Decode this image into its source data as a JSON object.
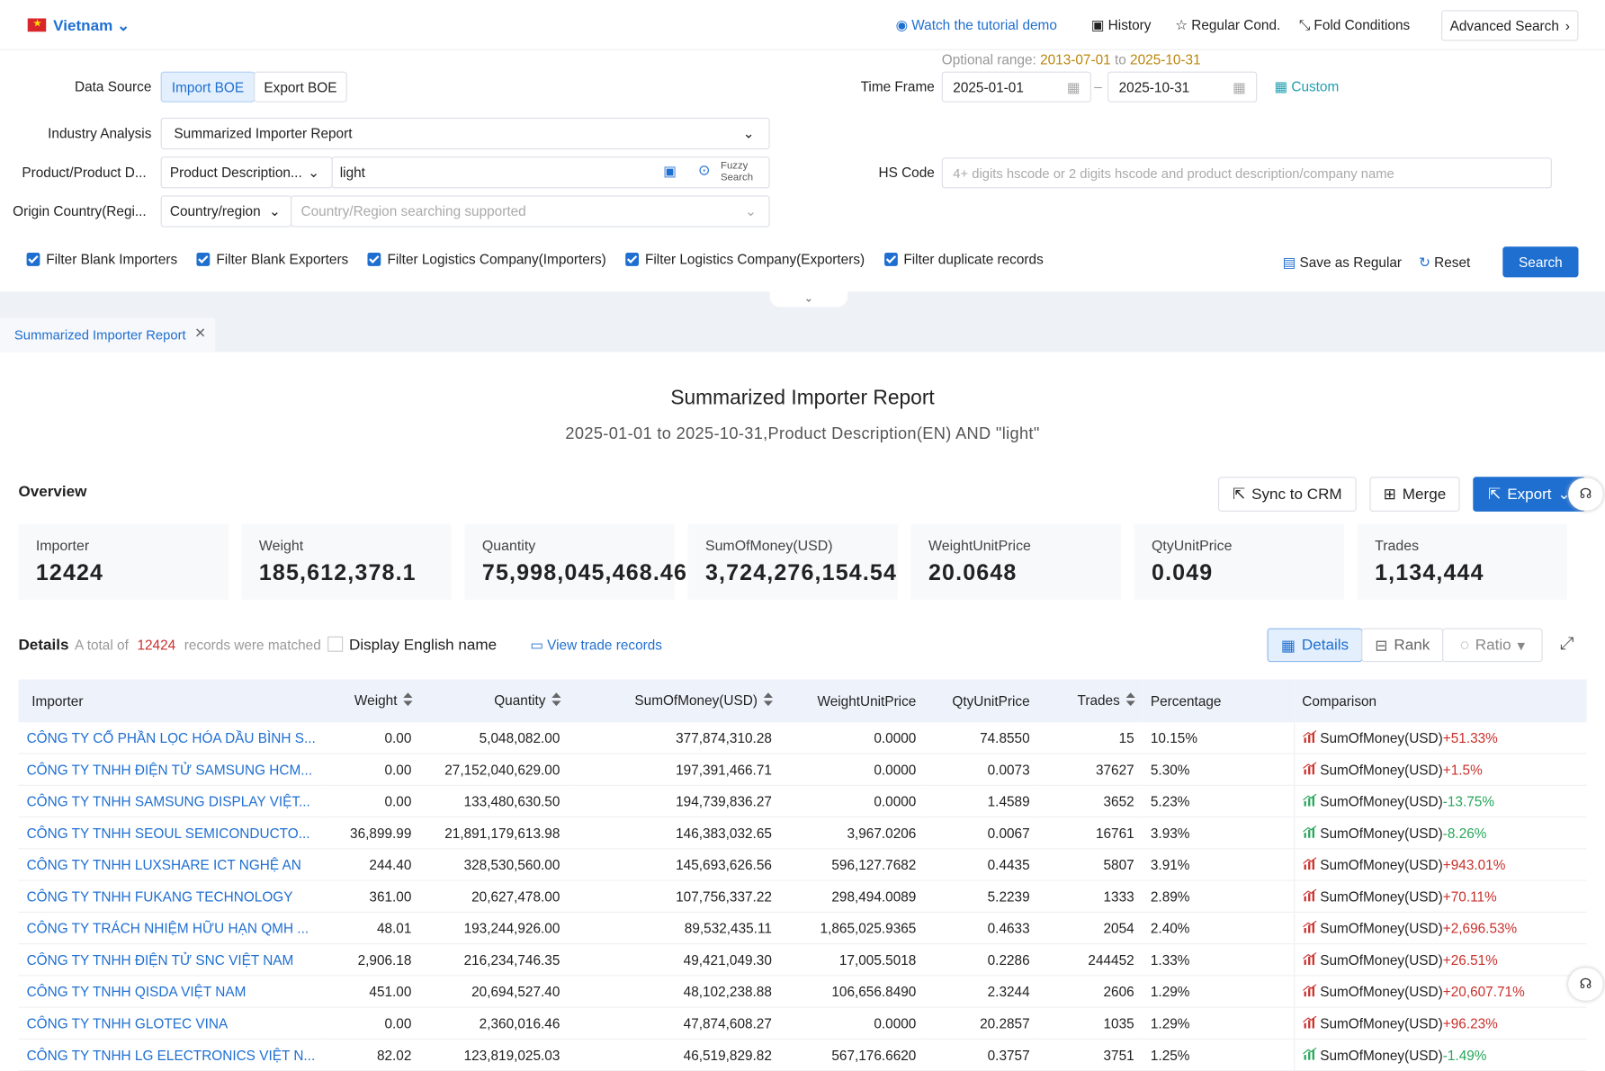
{
  "header": {
    "country": "Vietnam",
    "tutorial": "Watch the tutorial demo",
    "history": "History",
    "regular": "Regular Cond.",
    "fold": "Fold Conditions",
    "advanced": "Advanced Search"
  },
  "form": {
    "optional_range": {
      "label": "Optional range:",
      "from": "2013-07-01",
      "to_word": "to",
      "to": "2025-10-31"
    },
    "data_source": {
      "label": "Data Source",
      "options": [
        "Import BOE",
        "Export BOE"
      ]
    },
    "time_frame": {
      "label": "Time Frame",
      "start": "2025-01-01",
      "end": "2025-10-31",
      "custom": "Custom"
    },
    "industry": {
      "label": "Industry Analysis",
      "value": "Summarized Importer Report"
    },
    "product": {
      "label": "Product/Product D...",
      "type": "Product Description...",
      "value": "light",
      "fuzzy": [
        "Fuzzy",
        "Search"
      ]
    },
    "hs_code": {
      "label": "HS Code",
      "placeholder": "4+ digits hscode or 2 digits hscode and product description/company name"
    },
    "origin": {
      "label": "Origin Country(Regi...",
      "type": "Country/region",
      "placeholder": "Country/Region searching supported"
    },
    "filters": [
      "Filter Blank Importers",
      "Filter Blank Exporters",
      "Filter Logistics Company(Importers)",
      "Filter Logistics Company(Exporters)",
      "Filter duplicate records"
    ],
    "actions": {
      "save": "Save as Regular",
      "reset": "Reset",
      "search": "Search"
    }
  },
  "tab": "Summarized Importer Report",
  "report": {
    "title": "Summarized Importer Report",
    "subtitle": "2025-01-01 to 2025-10-31,Product Description(EN) AND \"light\""
  },
  "overview": {
    "label": "Overview",
    "buttons": [
      "Sync to CRM",
      "Merge",
      "Export"
    ],
    "stats": [
      {
        "label": "Importer",
        "value": "12424"
      },
      {
        "label": "Weight",
        "value": "185,612,378.1"
      },
      {
        "label": "Quantity",
        "value": "75,998,045,468.46"
      },
      {
        "label": "SumOfMoney(USD)",
        "value": "3,724,276,154.54"
      },
      {
        "label": "WeightUnitPrice",
        "value": "20.0648"
      },
      {
        "label": "QtyUnitPrice",
        "value": "0.049"
      },
      {
        "label": "Trades",
        "value": "1,134,444"
      }
    ]
  },
  "details": {
    "label": "Details",
    "total_prefix": "A total of",
    "total": "12424",
    "total_suffix": "records were matched",
    "english": "Display English name",
    "view": "View trade records",
    "views": [
      "Details",
      "Rank",
      "Ratio"
    ]
  },
  "table": {
    "columns": [
      {
        "label": "Importer",
        "sortable": false
      },
      {
        "label": "Weight",
        "sortable": true
      },
      {
        "label": "Quantity",
        "sortable": true
      },
      {
        "label": "SumOfMoney(USD)",
        "sortable": true
      },
      {
        "label": "WeightUnitPrice",
        "sortable": false
      },
      {
        "label": "QtyUnitPrice",
        "sortable": false
      },
      {
        "label": "Trades",
        "sortable": true
      },
      {
        "label": "Percentage",
        "sortable": false
      },
      {
        "label": "Comparison",
        "sortable": false
      }
    ],
    "rows": [
      [
        "CÔNG TY CỔ PHẦN LỌC HÓA DẦU BÌNH S...",
        "0.00",
        "5,048,082.00",
        "377,874,310.28",
        "0.0000",
        "74.8550",
        "15",
        "10.15%",
        "SumOfMoney(USD)",
        "+51.33%"
      ],
      [
        "CÔNG TY TNHH ĐIỆN TỬ SAMSUNG HCM...",
        "0.00",
        "27,152,040,629.00",
        "197,391,466.71",
        "0.0000",
        "0.0073",
        "37627",
        "5.30%",
        "SumOfMoney(USD)",
        "+1.5%"
      ],
      [
        "CÔNG TY TNHH SAMSUNG DISPLAY VIỆT...",
        "0.00",
        "133,480,630.50",
        "194,739,836.27",
        "0.0000",
        "1.4589",
        "3652",
        "5.23%",
        "SumOfMoney(USD)",
        "-13.75%"
      ],
      [
        "CÔNG TY TNHH SEOUL SEMICONDUCTO...",
        "36,899.99",
        "21,891,179,613.98",
        "146,383,032.65",
        "3,967.0206",
        "0.0067",
        "16761",
        "3.93%",
        "SumOfMoney(USD)",
        "-8.26%"
      ],
      [
        "CÔNG TY TNHH LUXSHARE ICT NGHỆ AN",
        "244.40",
        "328,530,560.00",
        "145,693,626.56",
        "596,127.7682",
        "0.4435",
        "5807",
        "3.91%",
        "SumOfMoney(USD)",
        "+943.01%"
      ],
      [
        "CÔNG TY TNHH FUKANG TECHNOLOGY",
        "361.00",
        "20,627,478.00",
        "107,756,337.22",
        "298,494.0089",
        "5.2239",
        "1333",
        "2.89%",
        "SumOfMoney(USD)",
        "+70.11%"
      ],
      [
        "CÔNG TY TRÁCH NHIỆM HỮU HẠN QMH ...",
        "48.01",
        "193,244,926.00",
        "89,532,435.11",
        "1,865,025.9365",
        "0.4633",
        "2054",
        "2.40%",
        "SumOfMoney(USD)",
        "+2,696.53%"
      ],
      [
        "CÔNG TY TNHH ĐIỆN TỬ SNC VIỆT NAM",
        "2,906.18",
        "216,234,746.35",
        "49,421,049.30",
        "17,005.5018",
        "0.2286",
        "244452",
        "1.33%",
        "SumOfMoney(USD)",
        "+26.51%"
      ],
      [
        "CÔNG TY TNHH QISDA VIỆT NAM",
        "451.00",
        "20,694,527.40",
        "48,102,238.88",
        "106,656.8490",
        "2.3244",
        "2606",
        "1.29%",
        "SumOfMoney(USD)",
        "+20,607.71%"
      ],
      [
        "CÔNG TY TNHH GLOTEC VINA",
        "0.00",
        "2,360,016.46",
        "47,874,608.27",
        "0.0000",
        "20.2857",
        "1035",
        "1.29%",
        "SumOfMoney(USD)",
        "+96.23%"
      ],
      [
        "CÔNG TY TNHH LG ELECTRONICS VIỆT N...",
        "82.02",
        "123,819,025.03",
        "46,519,829.82",
        "567,176.6620",
        "0.3757",
        "3751",
        "1.25%",
        "SumOfMoney(USD)",
        "-1.49%"
      ]
    ]
  }
}
